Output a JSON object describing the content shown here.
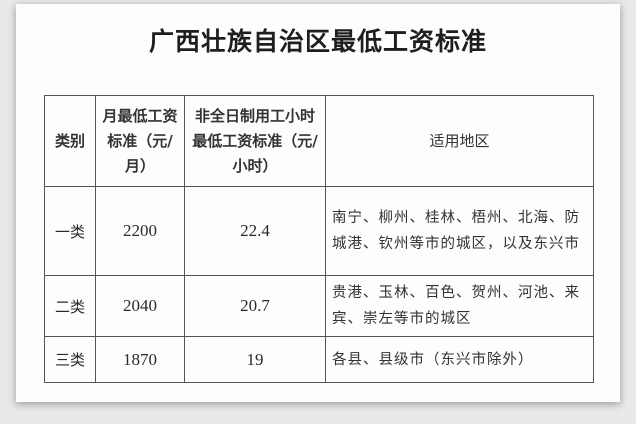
{
  "title": "广西壮族自治区最低工资标准",
  "headers": [
    "类别",
    "月最低工资标准（元/月）",
    "非全日制用工小时最低工资标准（元/小时）",
    "适用地区"
  ],
  "rows": [
    {
      "category": "一类",
      "monthly": "2200",
      "hourly": "22.4",
      "areas": "南宁、柳州、桂林、梧州、北海、防城港、钦州等市的城区，以及东兴市"
    },
    {
      "category": "二类",
      "monthly": "2040",
      "hourly": "20.7",
      "areas": "贵港、玉林、百色、贺州、河池、来宾、崇左等市的城区"
    },
    {
      "category": "三类",
      "monthly": "1870",
      "hourly": "19",
      "areas": "各县、县级市（东兴市除外）"
    }
  ]
}
